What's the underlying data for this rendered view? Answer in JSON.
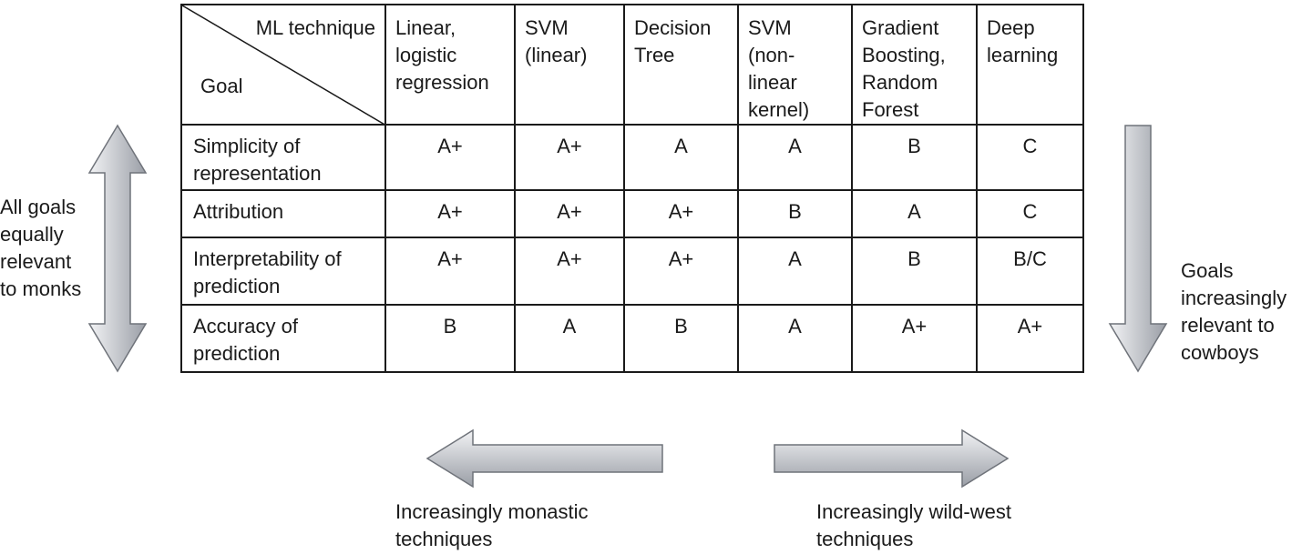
{
  "table": {
    "corner_top": "ML technique",
    "corner_bottom": "Goal",
    "columns": [
      "Linear,\nlogistic\nregression",
      "SVM\n(linear)",
      "Decision\nTree",
      "SVM\n(non-\nlinear\nkernel)",
      "Gradient\nBoosting,\nRandom\nForest",
      "Deep\nlearning"
    ],
    "rows": [
      {
        "goal": "Simplicity of\nrepresentation",
        "grades": [
          "A+",
          "A+",
          "A",
          "A",
          "B",
          "C"
        ]
      },
      {
        "goal": "Attribution",
        "grades": [
          "A+",
          "A+",
          "A+",
          "B",
          "A",
          "C"
        ]
      },
      {
        "goal": "Interpretability of\nprediction",
        "grades": [
          "A+",
          "A+",
          "A+",
          "A",
          "B",
          "B/C"
        ]
      },
      {
        "goal": "Accuracy of\nprediction",
        "grades": [
          "B",
          "A",
          "B",
          "A",
          "A+",
          "A+"
        ]
      }
    ]
  },
  "left_note": "All goals\nequally\nrelevant\nto monks",
  "right_note": "Goals\nincreasingly\nrelevant to\ncowboys",
  "bottom_left_note": "Increasingly monastic\ntechniques",
  "bottom_right_note": "Increasingly wild-west\ntechniques",
  "colors": {
    "arrow_light": "#f2f3f5",
    "arrow_dark": "#9a9ea6",
    "arrow_stroke": "#6f737a"
  }
}
